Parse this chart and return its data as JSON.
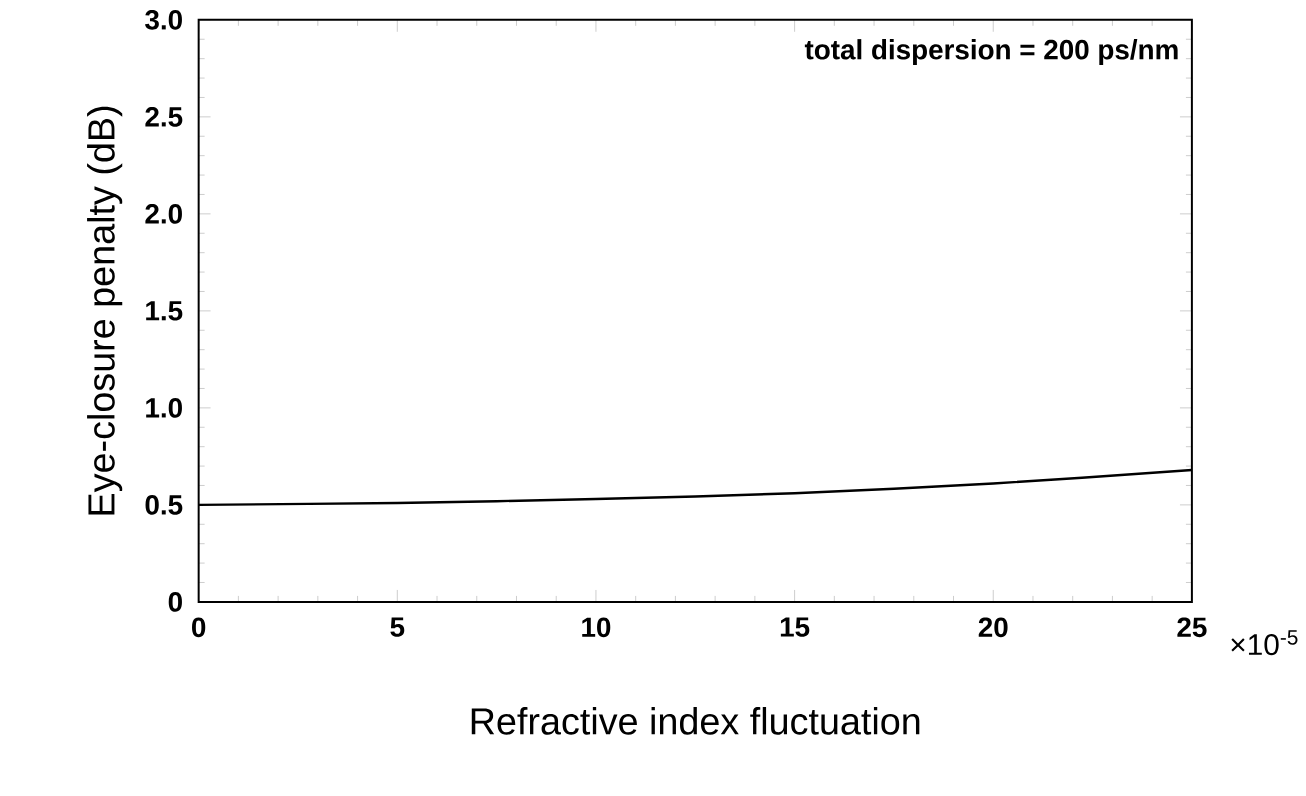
{
  "chart_data": {
    "type": "line",
    "xlabel": "Refractive index fluctuation",
    "ylabel": "Eye-closure penalty (dB)",
    "annotations": [
      {
        "text": "total dispersion = 200 ps/nm"
      },
      {
        "text": "×10$^{-5}$"
      }
    ],
    "x": [
      0,
      5,
      10,
      15,
      20,
      25
    ],
    "series": [
      {
        "color": "#000000",
        "values": [
          0.5,
          0.51,
          0.53,
          0.56,
          0.61,
          0.68
        ]
      }
    ],
    "xlim": [
      0,
      25
    ],
    "ylim": [
      0,
      3.0
    ],
    "xticks": [
      0,
      5,
      10,
      15,
      20,
      25
    ],
    "yticks": [
      0,
      {
        "value": 0.5,
        "label": "0.5"
      },
      {
        "value": 1.0,
        "label": "1.0"
      },
      {
        "value": 1.5,
        "label": "1.5"
      },
      {
        "value": 2.0,
        "label": "2.0"
      },
      {
        "value": 2.5,
        "label": "2.5"
      },
      {
        "value": 3.0,
        "label": "3.0"
      }
    ],
    "marker": "none",
    "line_style": "solid"
  }
}
